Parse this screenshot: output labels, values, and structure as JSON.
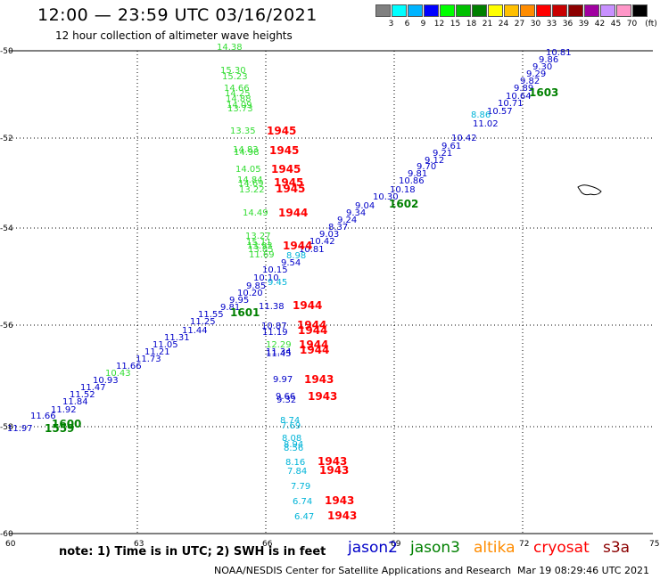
{
  "header": {
    "title": "12:00 — 23:59 UTC 03/16/2021",
    "subtitle": "12 hour collection of altimeter wave heights"
  },
  "colorbar": {
    "unit": "(ft)",
    "labels": [
      "3",
      "6",
      "9",
      "12",
      "15",
      "18",
      "21",
      "24",
      "27",
      "30",
      "33",
      "36",
      "39",
      "42",
      "45",
      "70"
    ],
    "colors": [
      "#808080",
      "#00ffff",
      "#00b4ff",
      "#0000ff",
      "#00ff00",
      "#00c000",
      "#008000",
      "#ffff00",
      "#ffc000",
      "#ff8c00",
      "#ff0000",
      "#c80000",
      "#8c0000",
      "#a000a0",
      "#c890ff",
      "#ff96c8",
      "#000000"
    ]
  },
  "axes": {
    "x_ticks": [
      "60",
      "63",
      "66",
      "69",
      "72",
      "75"
    ],
    "y_ticks": [
      "-50",
      "-52",
      "-54",
      "-56",
      "-58",
      "-60"
    ]
  },
  "colors": {
    "jason2": "#0000c8",
    "jason3": "#008000",
    "altika": "#ff8c00",
    "cryosat": "#ff0000",
    "s3a": "#8b0000",
    "cyan": "#00b4d8",
    "lightgreen": "#33dd33"
  },
  "track_labels": {
    "diag_times": [
      "1603",
      "1602",
      "1601",
      "1600",
      "1559"
    ],
    "vert_times": [
      "1945",
      "1945",
      "1945",
      "1945",
      "1945",
      "1944",
      "1944",
      "1944",
      "1944",
      "1944",
      "1944",
      "1944",
      "1943",
      "1943",
      "1943",
      "1943",
      "1943",
      "1943"
    ]
  },
  "observations": {
    "diagonal_blue": [
      [
        "10.81",
        612,
        62
      ],
      [
        "9.86",
        604,
        70
      ],
      [
        "9.30",
        597,
        78
      ],
      [
        "9.29",
        590,
        86
      ],
      [
        "9.82",
        583,
        94
      ],
      [
        "9.89",
        576,
        102
      ],
      [
        "10.64",
        567,
        111
      ],
      [
        "10.71",
        558,
        119
      ],
      [
        "10.57",
        546,
        128
      ],
      [
        "11.02",
        530,
        142
      ],
      [
        "10.42",
        506,
        158
      ],
      [
        "9.61",
        495,
        167
      ],
      [
        "9.21",
        485,
        175
      ],
      [
        "9.12",
        476,
        183
      ],
      [
        "9.70",
        467,
        190
      ],
      [
        "9.81",
        457,
        198
      ],
      [
        "10.86",
        447,
        206
      ],
      [
        "10.18",
        437,
        216
      ],
      [
        "10.30",
        418,
        224
      ],
      [
        "9.04",
        398,
        234
      ],
      [
        "9.34",
        388,
        242
      ],
      [
        "9.24",
        378,
        250
      ],
      [
        "8.37",
        368,
        258
      ],
      [
        "9.03",
        358,
        266
      ],
      [
        "10.42",
        347,
        274
      ],
      [
        "10.81",
        335,
        283
      ],
      [
        "9.54",
        315,
        298
      ],
      [
        "10.15",
        294,
        306
      ],
      [
        "10.10",
        284,
        315
      ],
      [
        "9.85",
        276,
        324
      ],
      [
        "10.20",
        266,
        332
      ],
      [
        "9.95",
        257,
        340
      ],
      [
        "9.81",
        247,
        348
      ],
      [
        "11.55",
        222,
        356
      ],
      [
        "11.25",
        213,
        364
      ],
      [
        "11.44",
        204,
        374
      ],
      [
        "11.31",
        184,
        382
      ],
      [
        "11.05",
        171,
        390
      ],
      [
        "11.21",
        162,
        398
      ],
      [
        "11.73",
        152,
        406
      ],
      [
        "11.66",
        130,
        414
      ],
      [
        "10.93",
        104,
        430
      ],
      [
        "11.47",
        90,
        438
      ],
      [
        "11.52",
        78,
        446
      ],
      [
        "11.84",
        70,
        454
      ],
      [
        "11.92",
        57,
        463
      ],
      [
        "11.66",
        34,
        470
      ],
      [
        "11.97",
        8,
        484
      ]
    ],
    "diagonal_cyan": [
      [
        "8.86",
        528,
        132
      ],
      [
        "8.98",
        321,
        290
      ],
      [
        "9.45",
        300,
        320
      ]
    ],
    "diagonal_lightgreen": [
      [
        "10.43",
        118,
        422
      ]
    ],
    "jason3_times": [
      [
        "1603",
        593,
        108
      ],
      [
        "1602",
        436,
        233
      ],
      [
        "1601",
        258,
        355
      ],
      [
        "1600",
        58,
        480
      ],
      [
        "1559",
        50,
        485
      ]
    ],
    "vertical_lightgreen": [
      [
        "14.38",
        243,
        56
      ],
      [
        "15.30",
        247,
        82
      ],
      [
        "15.23",
        249,
        89
      ],
      [
        "14.66",
        251,
        102
      ],
      [
        "14.25",
        252,
        108
      ],
      [
        "14.88",
        253,
        114
      ],
      [
        "14.09",
        254,
        121
      ],
      [
        "13.73",
        255,
        125
      ],
      [
        "13.35",
        258,
        150
      ],
      [
        "14.83",
        261,
        171
      ],
      [
        "14.98",
        262,
        174
      ],
      [
        "14.05",
        264,
        193
      ],
      [
        "14.84",
        266,
        205
      ],
      [
        "14.69",
        267,
        209
      ],
      [
        "13.22",
        268,
        216
      ],
      [
        "14.49",
        272,
        242
      ],
      [
        "13.27",
        275,
        268
      ],
      [
        "15.11",
        276,
        275
      ],
      [
        "13.93",
        277,
        279
      ],
      [
        "13.85",
        278,
        283
      ],
      [
        "11.69",
        279,
        289
      ],
      [
        "12.29",
        298,
        390
      ]
    ],
    "vertical_blue": [
      [
        "11.38",
        290,
        347
      ],
      [
        "10.87",
        293,
        369
      ],
      [
        "11.19",
        294,
        376
      ],
      [
        "11.34",
        298,
        398
      ],
      [
        "11.45",
        298,
        400
      ],
      [
        "9.97",
        306,
        429
      ],
      [
        "9.66",
        309,
        448
      ],
      [
        "9.32",
        310,
        452
      ]
    ],
    "vertical_cyan": [
      [
        "8.74",
        314,
        475
      ],
      [
        "7.69",
        315,
        481
      ],
      [
        "8.08",
        316,
        495
      ],
      [
        "8.94",
        318,
        502
      ],
      [
        "8.56",
        318,
        506
      ],
      [
        "8.16",
        320,
        522
      ],
      [
        "7.84",
        322,
        532
      ],
      [
        "7.79",
        326,
        549
      ],
      [
        "6.74",
        328,
        566
      ],
      [
        "6.47",
        330,
        583
      ]
    ],
    "vertical_red": [
      [
        "1945",
        299,
        151
      ],
      [
        "1945",
        302,
        173
      ],
      [
        "1945",
        304,
        194
      ],
      [
        "1945",
        307,
        209
      ],
      [
        "1945",
        309,
        216
      ],
      [
        "1944",
        312,
        243
      ],
      [
        "1944",
        317,
        280
      ],
      [
        "1944",
        328,
        347
      ],
      [
        "1944",
        333,
        369
      ],
      [
        "1944",
        334,
        375
      ],
      [
        "1944",
        335,
        391
      ],
      [
        "1944",
        336,
        397
      ],
      [
        "1943",
        341,
        430
      ],
      [
        "1943",
        345,
        449
      ],
      [
        "1943",
        356,
        522
      ],
      [
        "1943",
        358,
        532
      ],
      [
        "1943",
        364,
        566
      ],
      [
        "1943",
        367,
        583
      ]
    ]
  },
  "legend": {
    "note": "note:  1) Time is in UTC;  2) SWH is in feet",
    "items": [
      {
        "name": "jason2",
        "color": "#0000c8"
      },
      {
        "name": "jason3",
        "color": "#008000"
      },
      {
        "name": "altika",
        "color": "#ff8c00"
      },
      {
        "name": "cryosat",
        "color": "#ff0000"
      },
      {
        "name": "s3a",
        "color": "#8b0000"
      }
    ]
  },
  "footer": {
    "source": "NOAA/NESDIS Center for Satellite Applications and Research",
    "timestamp": "Mar 19 08:29:46 UTC 2021"
  }
}
